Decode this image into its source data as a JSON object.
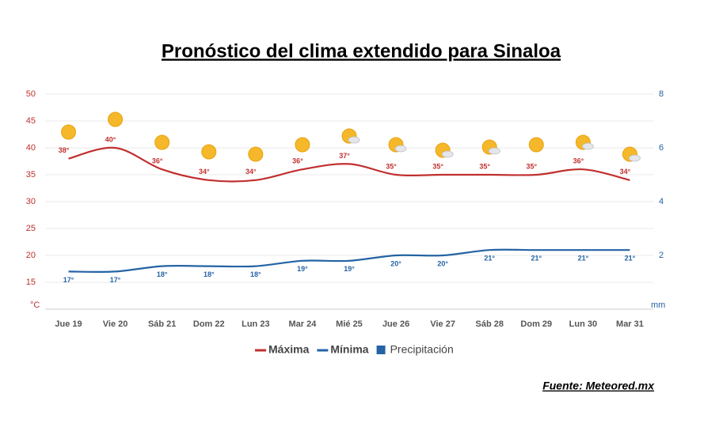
{
  "chart_data": {
    "type": "line",
    "title": "Pronóstico del clima extendido para Sinaloa",
    "source": "Fuente: Meteored.mx",
    "y_unit": "°C",
    "y2_unit": "mm",
    "categories": [
      "Jue 19",
      "Vie 20",
      "Sáb 21",
      "Dom 22",
      "Lun 23",
      "Mar 24",
      "Mié 25",
      "Jue 26",
      "Vie 27",
      "Sáb 28",
      "Dom 29",
      "Lun 30",
      "Mar 31"
    ],
    "series": [
      {
        "name": "Máxima",
        "color": "#c0302f",
        "values": [
          38,
          40,
          36,
          34,
          34,
          36,
          37,
          35,
          35,
          35,
          35,
          36,
          34
        ],
        "value_labels": [
          "38°",
          "40°",
          "36°",
          "34°",
          "34°",
          "36°",
          "37°",
          "35°",
          "35°",
          "35°",
          "35°",
          "36°",
          "34°"
        ]
      },
      {
        "name": "Mínima",
        "color": "#2463a4",
        "values": [
          17,
          17,
          18,
          18,
          18,
          19,
          19,
          20,
          20,
          21,
          21,
          21,
          21
        ],
        "value_labels": [
          "17°",
          "17°",
          "18°",
          "18°",
          "18°",
          "19°",
          "19°",
          "20°",
          "20°",
          "21°",
          "21°",
          "21°",
          "21°"
        ]
      },
      {
        "name": "Precipitación",
        "color": "#2463a4",
        "axis": "y2",
        "values": [
          null,
          null,
          null,
          null,
          null,
          null,
          null,
          null,
          null,
          null,
          null,
          null,
          null
        ]
      }
    ],
    "ylim": [
      10,
      50
    ],
    "yticks": [
      15,
      20,
      25,
      30,
      35,
      40,
      45,
      50
    ],
    "y2lim": [
      0,
      8
    ],
    "y2ticks": [
      2,
      4,
      6,
      8
    ],
    "grid": true
  }
}
